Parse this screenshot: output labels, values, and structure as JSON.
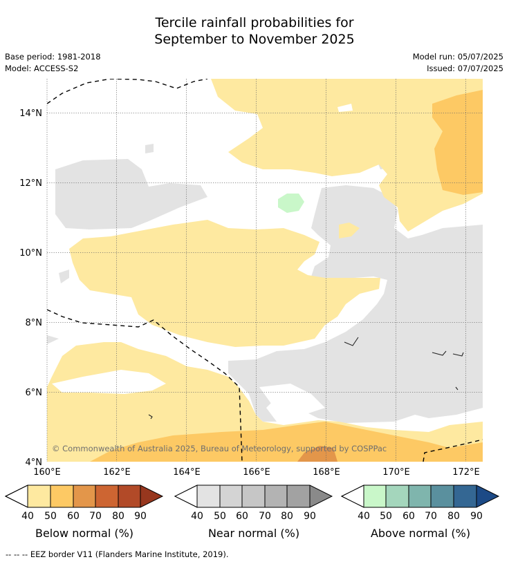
{
  "title": {
    "line1": "Tercile rainfall probabilities for",
    "line2": "September to November 2025"
  },
  "meta": {
    "base_period": "Base period: 1981-2018",
    "model": "Model: ACCESS-S2",
    "model_run": "Model run: 05/07/2025",
    "issued": "Issued: 07/07/2025"
  },
  "map": {
    "lat_labels": [
      "14°N",
      "12°N",
      "10°N",
      "8°N",
      "6°N",
      "4°N"
    ],
    "lon_labels": [
      "160°E",
      "162°E",
      "164°E",
      "166°E",
      "168°E",
      "170°E",
      "172°E"
    ],
    "copyright": "© Commonwealth of Australia 2025, Bureau of Meteorology, supported by COSPPac"
  },
  "colorbars": [
    {
      "name": "below",
      "label": "Below normal (%)",
      "ticks": [
        "40",
        "50",
        "60",
        "70",
        "80",
        "90"
      ],
      "colors": [
        "#fee9a0",
        "#fdc964",
        "#e3964a",
        "#cd6532",
        "#b24a28",
        "#97371e"
      ]
    },
    {
      "name": "near",
      "label": "Near normal (%)",
      "ticks": [
        "40",
        "50",
        "60",
        "70",
        "80",
        "90"
      ],
      "colors": [
        "#e3e3e3",
        "#d4d4d4",
        "#c6c6c6",
        "#b3b3b3",
        "#a2a2a2",
        "#8a8a8a"
      ]
    },
    {
      "name": "above",
      "label": "Above normal (%)",
      "ticks": [
        "40",
        "50",
        "60",
        "70",
        "80",
        "90"
      ],
      "colors": [
        "#c9f7c9",
        "#a4d6bc",
        "#7fb5ad",
        "#5a909e",
        "#346793",
        "#1c4a86"
      ]
    }
  ],
  "footnote": "--  --  -- EEZ border V11 (Flanders Marine Institute, 2019)."
}
